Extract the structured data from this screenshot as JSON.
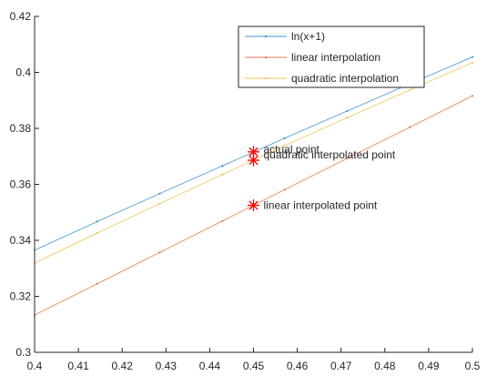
{
  "chart_data": {
    "type": "line",
    "title": "",
    "xlabel": "",
    "ylabel": "",
    "xlim": [
      0.4,
      0.5
    ],
    "ylim": [
      0.3,
      0.42
    ],
    "x_ticks": [
      0.4,
      0.41,
      0.42,
      0.43,
      0.44,
      0.45,
      0.46,
      0.47,
      0.48,
      0.49,
      0.5
    ],
    "x_tick_labels": [
      "0.4",
      "0.41",
      "0.42",
      "0.43",
      "0.44",
      "0.45",
      "0.46",
      "0.47",
      "0.48",
      "0.49",
      "0.5"
    ],
    "y_ticks": [
      0.3,
      0.32,
      0.34,
      0.36,
      0.38,
      0.4,
      0.42
    ],
    "y_tick_labels": [
      "0.3",
      "0.32",
      "0.34",
      "0.36",
      "0.38",
      "0.4",
      "0.42"
    ],
    "grid": false,
    "legend": "top-right",
    "series": [
      {
        "name": "ln(x+1)",
        "color": "#0072bd",
        "x": [
          0.4,
          0.4143,
          0.4286,
          0.4429,
          0.4571,
          0.4714,
          0.4857,
          0.5
        ],
        "y": [
          0.3365,
          0.3467,
          0.3567,
          0.3666,
          0.3765,
          0.3862,
          0.3959,
          0.4055
        ]
      },
      {
        "name": "linear interpolation",
        "color": "#d95319",
        "x": [
          0.4,
          0.4143,
          0.4286,
          0.4429,
          0.4571,
          0.4714,
          0.4857,
          0.5
        ],
        "y": [
          0.3133,
          0.3245,
          0.3357,
          0.3469,
          0.3581,
          0.3693,
          0.3804,
          0.3916
        ]
      },
      {
        "name": "quadratic interpolation",
        "color": "#edb120",
        "x": [
          0.4,
          0.4143,
          0.4286,
          0.4429,
          0.4571,
          0.4714,
          0.4857,
          0.5
        ],
        "y": [
          0.3319,
          0.3426,
          0.3531,
          0.3635,
          0.3738,
          0.3838,
          0.3937,
          0.4035
        ]
      }
    ],
    "points": [
      {
        "label": "actual point",
        "x": 0.45,
        "y": 0.3716,
        "color": "#ff0000"
      },
      {
        "label": "quadratic interpolated point",
        "x": 0.45,
        "y": 0.3686,
        "color": "#ff0000"
      },
      {
        "label": "linear interpolated point",
        "x": 0.45,
        "y": 0.3525,
        "color": "#ff0000"
      }
    ]
  }
}
